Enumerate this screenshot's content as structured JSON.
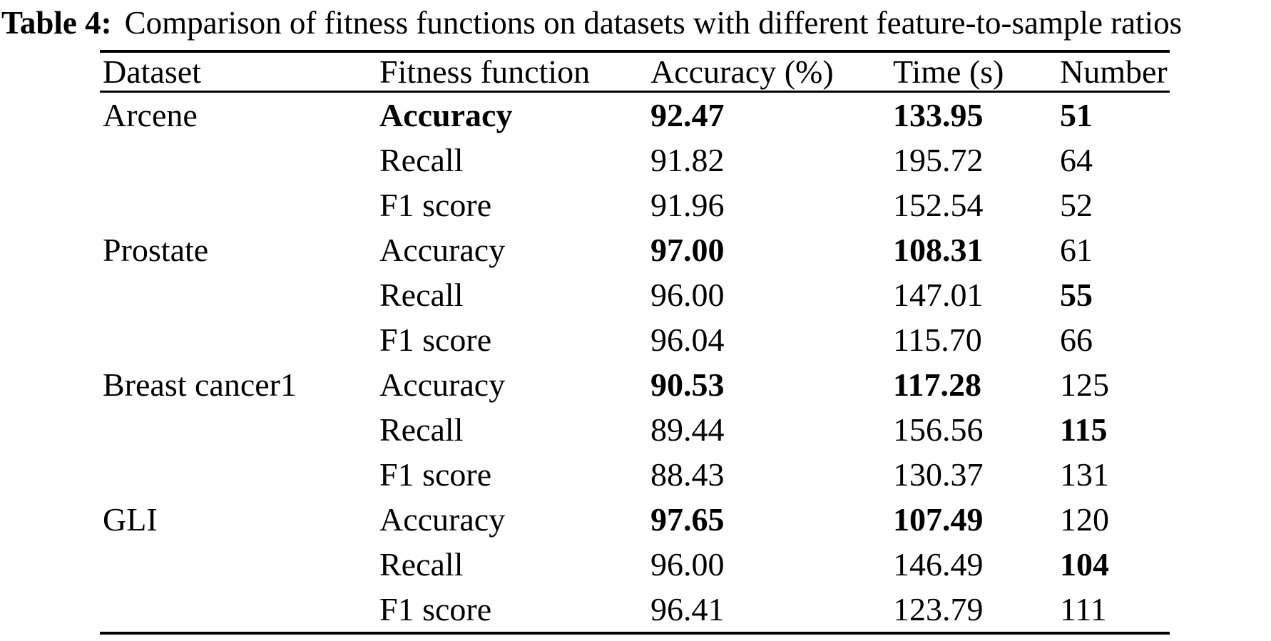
{
  "caption": {
    "label": "Table 4:",
    "text": "Comparison of fitness functions on datasets with different feature-to-sample ratios"
  },
  "chart_data": {
    "type": "table",
    "columns": [
      "Dataset",
      "Fitness function",
      "Accuracy (%)",
      "Time (s)",
      "Number"
    ],
    "rows": [
      {
        "dataset": "Arcene",
        "fitness": "Accuracy",
        "accuracy": "92.47",
        "time": "133.95",
        "number": "51",
        "bold": {
          "fitness": true,
          "accuracy": true,
          "time": true,
          "number": true
        }
      },
      {
        "dataset": "",
        "fitness": "Recall",
        "accuracy": "91.82",
        "time": "195.72",
        "number": "64",
        "bold": {}
      },
      {
        "dataset": "",
        "fitness": "F1 score",
        "accuracy": "91.96",
        "time": "152.54",
        "number": "52",
        "bold": {}
      },
      {
        "dataset": "Prostate",
        "fitness": "Accuracy",
        "accuracy": "97.00",
        "time": "108.31",
        "number": "61",
        "bold": {
          "accuracy": true,
          "time": true
        }
      },
      {
        "dataset": "",
        "fitness": "Recall",
        "accuracy": "96.00",
        "time": "147.01",
        "number": "55",
        "bold": {
          "number": true
        }
      },
      {
        "dataset": "",
        "fitness": "F1 score",
        "accuracy": "96.04",
        "time": "115.70",
        "number": "66",
        "bold": {}
      },
      {
        "dataset": "Breast cancer1",
        "fitness": "Accuracy",
        "accuracy": "90.53",
        "time": "117.28",
        "number": "125",
        "bold": {
          "accuracy": true,
          "time": true
        }
      },
      {
        "dataset": "",
        "fitness": "Recall",
        "accuracy": "89.44",
        "time": "156.56",
        "number": "115",
        "bold": {
          "number": true
        }
      },
      {
        "dataset": "",
        "fitness": "F1 score",
        "accuracy": "88.43",
        "time": "130.37",
        "number": "131",
        "bold": {}
      },
      {
        "dataset": "GLI",
        "fitness": "Accuracy",
        "accuracy": "97.65",
        "time": "107.49",
        "number": "120",
        "bold": {
          "accuracy": true,
          "time": true
        }
      },
      {
        "dataset": "",
        "fitness": "Recall",
        "accuracy": "96.00",
        "time": "146.49",
        "number": "104",
        "bold": {
          "number": true
        }
      },
      {
        "dataset": "",
        "fitness": "F1 score",
        "accuracy": "96.41",
        "time": "123.79",
        "number": "111",
        "bold": {}
      }
    ]
  }
}
